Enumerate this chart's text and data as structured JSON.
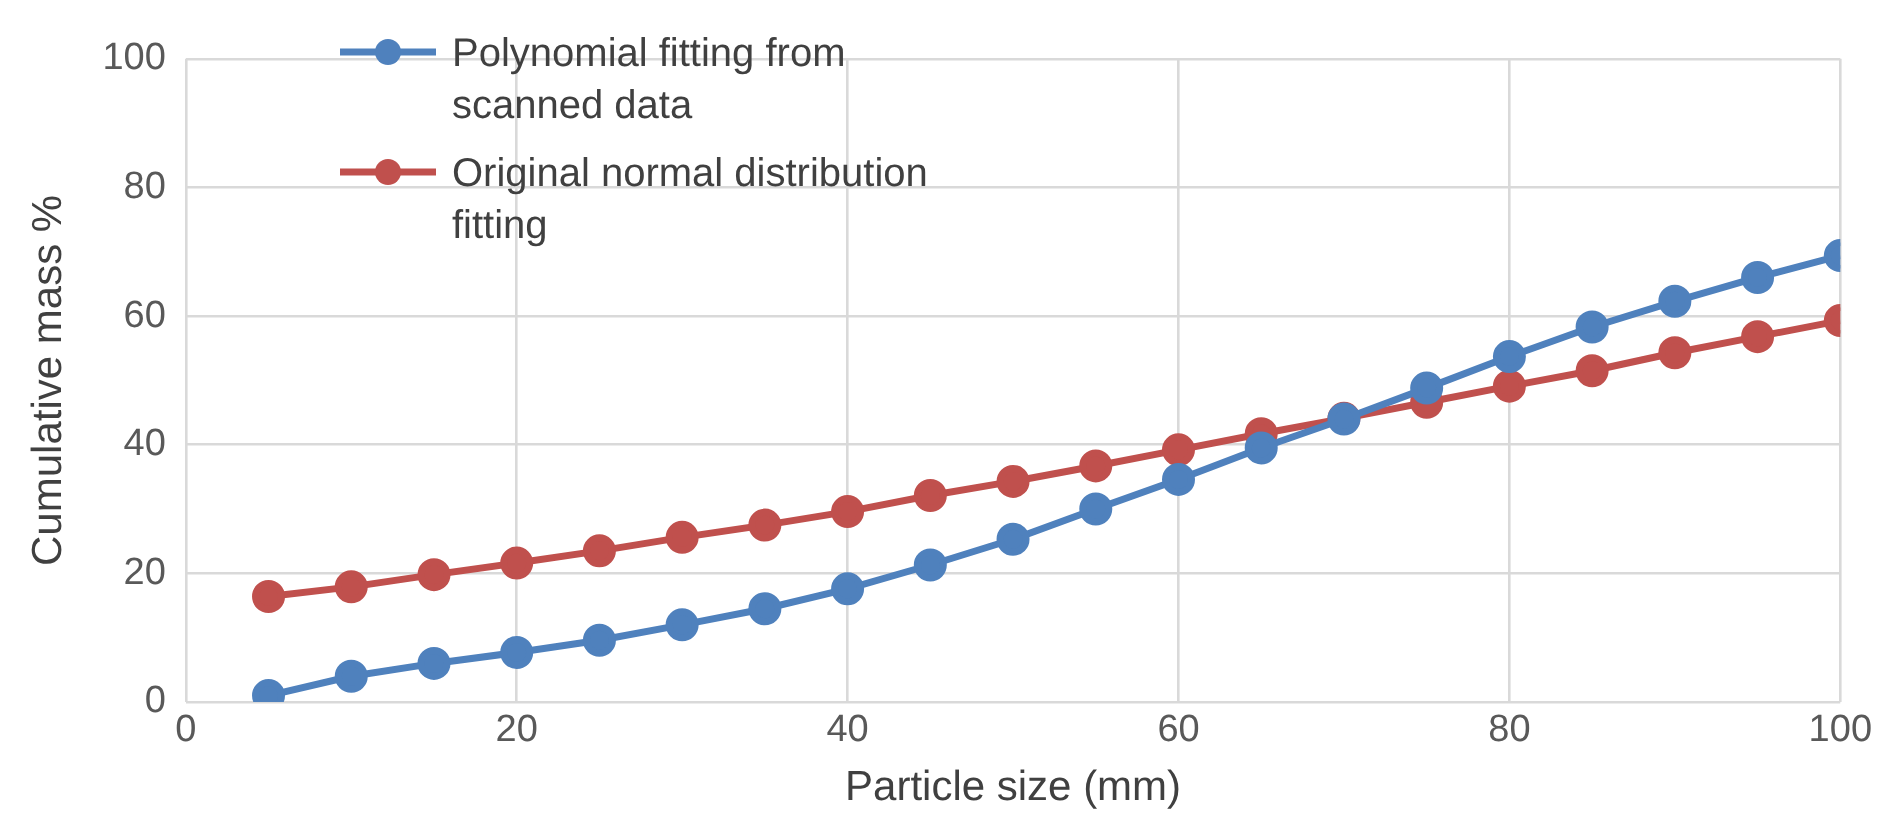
{
  "chart_data": {
    "type": "line",
    "xlabel": "Particle size (mm)",
    "ylabel": "Cumulative mass %",
    "x": [
      5,
      10,
      15,
      20,
      25,
      30,
      35,
      40,
      45,
      50,
      55,
      60,
      65,
      70,
      75,
      80,
      85,
      90,
      95,
      100
    ],
    "series": [
      {
        "name": "Polynomial fitting from scanned data",
        "color": "#4f81bd",
        "values": [
          1,
          4,
          6,
          7.7,
          9.6,
          12,
          14.5,
          17.6,
          21.3,
          25.3,
          30,
          34.6,
          39.5,
          44,
          48.8,
          53.7,
          58.3,
          62.3,
          66,
          69.4
        ]
      },
      {
        "name": "Original normal distribution fitting",
        "color": "#c0504d",
        "values": [
          16.4,
          17.9,
          19.8,
          21.6,
          23.5,
          25.6,
          27.5,
          29.6,
          32.1,
          34.3,
          36.7,
          39.2,
          41.7,
          44.1,
          46.6,
          49.1,
          51.5,
          54.3,
          56.8,
          59.3
        ]
      }
    ],
    "xlim": [
      0,
      100
    ],
    "xticks": [
      0,
      20,
      40,
      60,
      80,
      100
    ],
    "ylim": [
      0,
      100
    ],
    "yticks": [
      0,
      20,
      40,
      60,
      80,
      100
    ],
    "grid": true,
    "legend": "top left",
    "marker": "circle",
    "line_style": "solid"
  }
}
